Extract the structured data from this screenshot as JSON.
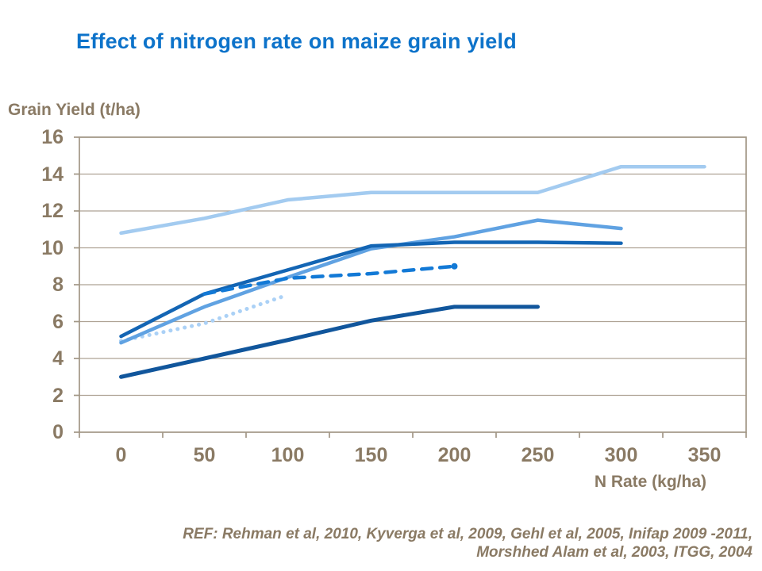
{
  "title": "Effect of nitrogen rate on maize grain yield",
  "y_axis_title": "Grain Yield (t/ha)",
  "x_axis_title": "N Rate (kg/ha)",
  "reference": {
    "line1": "REF: Rehman et al, 2010, Kyverga et al, 2009, Gehl et al, 2005, Inifap 2009 -2011,",
    "line2": "Morshhed Alam et al, 2003, ITGG, 2004"
  },
  "colors": {
    "title": "#0d73ca",
    "axis_text": "#8a7a64",
    "grid": "#aea294",
    "border": "#a29786",
    "background": "#ffffff"
  },
  "chart_data": {
    "type": "line",
    "title": "Effect of nitrogen rate on maize grain yield",
    "xlabel": "N Rate (kg/ha)",
    "ylabel": "Grain Yield (t/ha)",
    "x": [
      0,
      50,
      100,
      150,
      200,
      250,
      300,
      350
    ],
    "ylim": [
      0,
      16
    ],
    "yticks": [
      0,
      2,
      4,
      6,
      8,
      10,
      12,
      14,
      16
    ],
    "grid": true,
    "legend": "none",
    "series": [
      {
        "name": "light-blue-solid",
        "color": "#a3cbf0",
        "style": "solid",
        "width": 4.5,
        "values": [
          10.8,
          11.6,
          12.6,
          13,
          13,
          13,
          14.4,
          14.4
        ]
      },
      {
        "name": "dotted-light-blue",
        "color": "#abd1f6",
        "style": "dotted",
        "width": 5,
        "values": [
          4.95,
          5.9,
          7.45,
          null,
          null,
          null,
          null,
          null
        ]
      },
      {
        "name": "sky-blue-solid",
        "color": "#60a2e2",
        "style": "solid",
        "width": 4.5,
        "values": [
          4.85,
          6.8,
          8.4,
          9.95,
          10.6,
          11.5,
          11.05,
          null
        ]
      },
      {
        "name": "navy-blue-solid",
        "color": "#1365b4",
        "style": "solid",
        "width": 4.5,
        "values": [
          5.2,
          7.5,
          8.8,
          10.1,
          10.3,
          10.3,
          10.25,
          null
        ]
      },
      {
        "name": "dark-navy-solid",
        "color": "#11569c",
        "style": "solid",
        "width": 5,
        "values": [
          3,
          4,
          5,
          6.05,
          6.8,
          6.8,
          null,
          null
        ]
      },
      {
        "name": "dashed-blue",
        "color": "#1279d6",
        "style": "dashed",
        "width": 4.5,
        "values": [
          null,
          7.5,
          8.35,
          8.6,
          9,
          null,
          null,
          null
        ],
        "end_marker": {
          "x": 200,
          "y": 9
        }
      }
    ]
  }
}
